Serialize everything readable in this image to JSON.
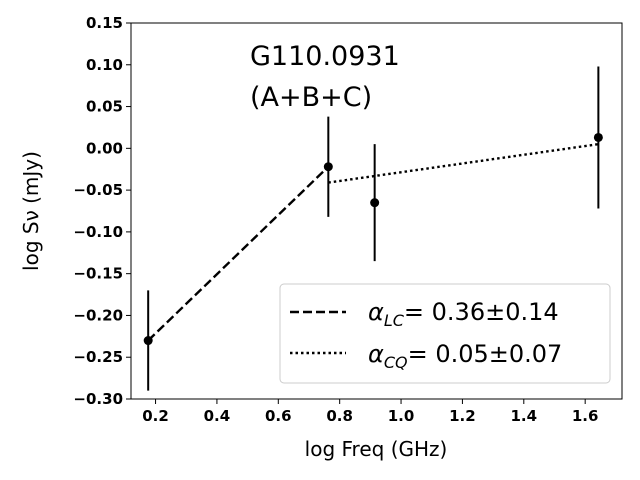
{
  "chart_data": {
    "type": "scatter",
    "xlabel": "log Freq (GHz)",
    "ylabel": "log Sν (mJy)",
    "xlim": [
      0.12,
      1.72
    ],
    "ylim": [
      -0.3,
      0.15
    ],
    "xticks": [
      0.2,
      0.4,
      0.6,
      0.8,
      1.0,
      1.2,
      1.4,
      1.6
    ],
    "xtick_labels": [
      "0.2",
      "0.4",
      "0.6",
      "0.8",
      "1.0",
      "1.2",
      "1.4",
      "1.6"
    ],
    "yticks": [
      -0.3,
      -0.25,
      -0.2,
      -0.15,
      -0.1,
      -0.05,
      0.0,
      0.05,
      0.1,
      0.15
    ],
    "ytick_labels": [
      "−0.30",
      "−0.25",
      "−0.20",
      "−0.15",
      "−0.10",
      "−0.05",
      "0.00",
      "0.05",
      "0.10",
      "0.15"
    ],
    "annotation": [
      "G110.0931",
      "(A+B+C)"
    ],
    "points": [
      {
        "x": 0.176,
        "y": -0.23,
        "err": 0.06
      },
      {
        "x": 0.763,
        "y": -0.022,
        "err": 0.06
      },
      {
        "x": 0.914,
        "y": -0.065,
        "err": 0.07
      },
      {
        "x": 1.643,
        "y": 0.013,
        "err": 0.085
      }
    ],
    "fits": [
      {
        "style": "dashed",
        "x": [
          0.176,
          0.763
        ],
        "y": [
          -0.23,
          -0.022
        ],
        "alpha_sym": "α",
        "alpha_sub": "LC",
        "alpha_value": "= 0.36±0.14"
      },
      {
        "style": "dotted",
        "x": [
          0.763,
          1.643
        ],
        "y": [
          -0.041,
          0.005
        ],
        "alpha_sym": "α",
        "alpha_sub": "CQ",
        "alpha_value": "= 0.05±0.07"
      }
    ],
    "legend_position": "lower-right",
    "grid": false,
    "colors": {
      "points": "#000000",
      "lines": "#000000"
    }
  }
}
